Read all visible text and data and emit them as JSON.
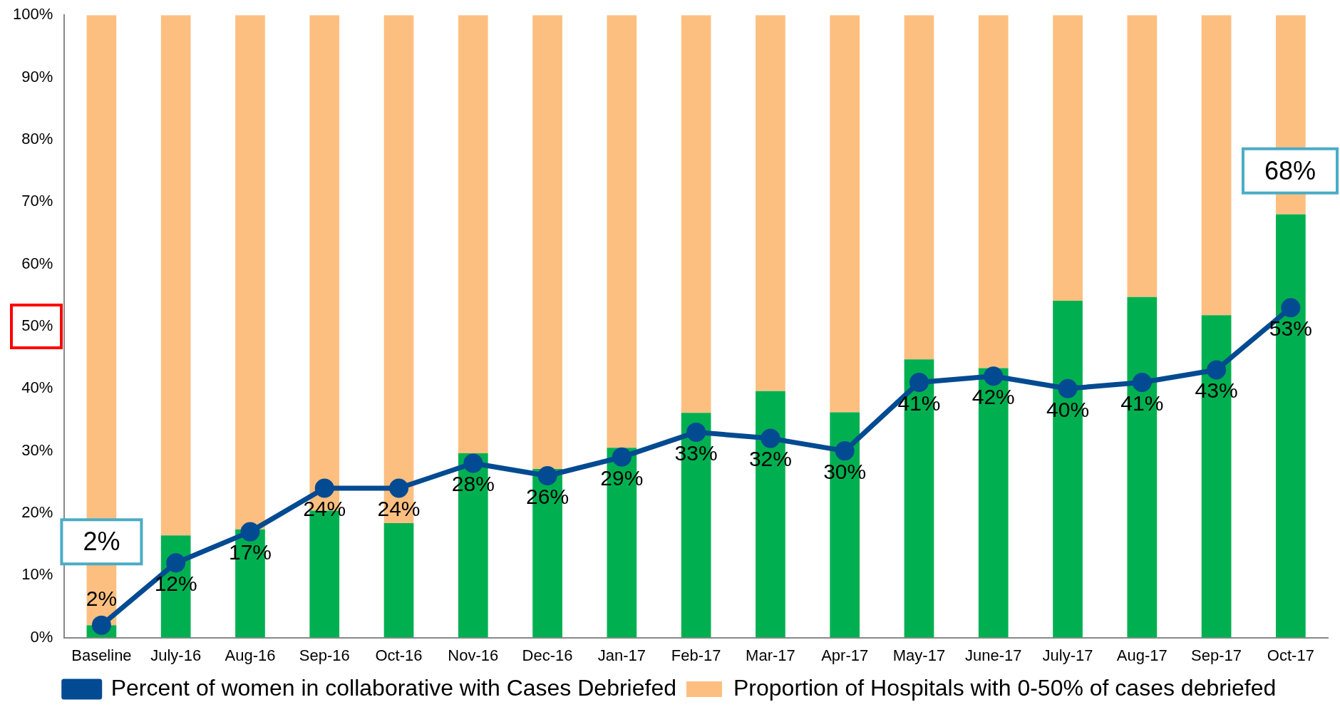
{
  "chart_data": {
    "type": "bar",
    "stacked": true,
    "categories": [
      "Baseline",
      "July-16",
      "Aug-16",
      "Sep-16",
      "Oct-16",
      "Nov-16",
      "Dec-16",
      "Jan-17",
      "Feb-17",
      "Mar-17",
      "Apr-17",
      "May-17",
      "June-17",
      "July-17",
      "Aug-17",
      "Sep-17",
      "Oct-17"
    ],
    "series": [
      {
        "color": "#00b050",
        "values": [
          2,
          16.4,
          17.4,
          20.4,
          18.4,
          29.6,
          27.1,
          30.5,
          36.1,
          39.6,
          36.2,
          44.7,
          43.3,
          54.1,
          54.7,
          51.8,
          68
        ]
      },
      {
        "name": "Proportion of Hospitals with 0-50% of cases debriefed",
        "color": "#fdbf80",
        "values": [
          98,
          83.6,
          82.6,
          79.6,
          81.6,
          70.4,
          72.9,
          69.5,
          63.9,
          60.4,
          63.8,
          55.3,
          56.7,
          45.9,
          45.3,
          48.2,
          32
        ]
      },
      {
        "type": "line",
        "name": "Percent of women in collaborative with Cases Debriefed",
        "color": "#024a91",
        "marker": "circle",
        "line_style": "solid",
        "values": [
          2,
          12,
          17,
          24,
          24,
          28,
          26,
          29,
          33,
          32,
          30,
          41,
          42,
          40,
          41,
          43,
          53
        ],
        "value_labels": [
          "2%",
          "12%",
          "17%",
          "24%",
          "24%",
          "28%",
          "26%",
          "29%",
          "33%",
          "32%",
          "30%",
          "41%",
          "42%",
          "40%",
          "41%",
          "43%",
          "53%"
        ]
      }
    ],
    "ylim": [
      0,
      100
    ],
    "yticks": [
      {
        "value": 0,
        "label": "0%"
      },
      {
        "value": 10,
        "label": "10%"
      },
      {
        "value": 20,
        "label": "20%"
      },
      {
        "value": 30,
        "label": "30%"
      },
      {
        "value": 40,
        "label": "40%"
      },
      {
        "value": 50,
        "label": "50%"
      },
      {
        "value": 60,
        "label": "60%"
      },
      {
        "value": 70,
        "label": "70%"
      },
      {
        "value": 80,
        "label": "80%"
      },
      {
        "value": 90,
        "label": "90%"
      },
      {
        "value": 100,
        "label": "100%"
      }
    ],
    "grid": false,
    "legend": "bottom",
    "annotations": [
      {
        "text": "2%",
        "x": "Baseline",
        "y": 2
      },
      {
        "text": "68%",
        "x": "Oct-17",
        "y": 68
      }
    ]
  }
}
